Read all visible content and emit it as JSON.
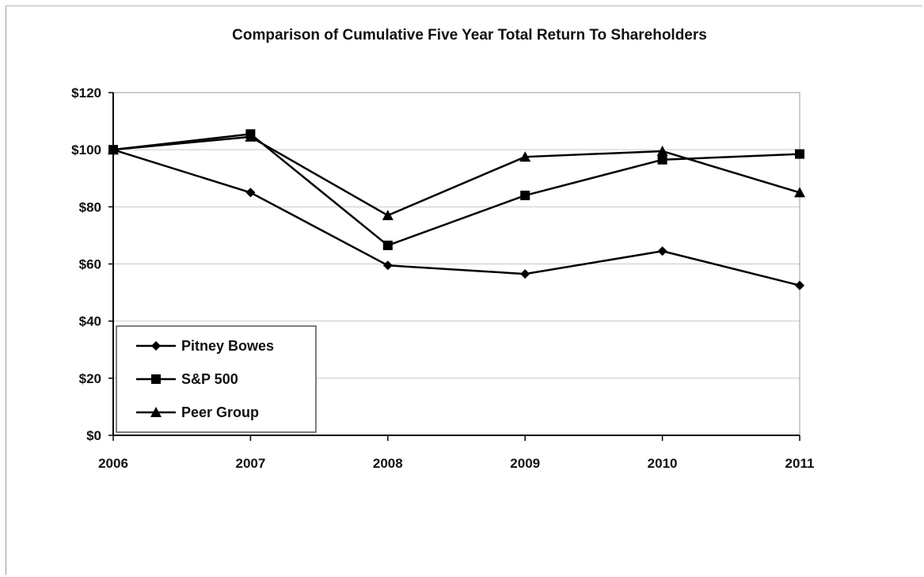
{
  "chart_data": {
    "type": "line",
    "title": "Comparison of Cumulative Five Year Total Return To Shareholders",
    "xlabel": "",
    "ylabel": "",
    "x": [
      "2006",
      "2007",
      "2008",
      "2009",
      "2010",
      "2011"
    ],
    "ylim": [
      0,
      120
    ],
    "yticks": [
      0,
      20,
      40,
      60,
      80,
      100,
      120
    ],
    "ytick_labels": [
      "$0",
      "$20",
      "$40",
      "$60",
      "$80",
      "$100",
      "$120"
    ],
    "grid": "horizontal",
    "legend_position": "bottom-left",
    "series": [
      {
        "name": "Pitney Bowes",
        "marker": "diamond",
        "color": "#000000",
        "values": [
          100,
          85,
          59.5,
          56.5,
          64.5,
          52.5
        ]
      },
      {
        "name": "S&P 500",
        "marker": "square",
        "color": "#000000",
        "values": [
          100,
          105.5,
          66.5,
          84,
          96.5,
          98.5
        ]
      },
      {
        "name": "Peer Group",
        "marker": "triangle",
        "color": "#000000",
        "values": [
          100,
          104.5,
          77,
          97.5,
          99.5,
          85
        ]
      }
    ]
  }
}
